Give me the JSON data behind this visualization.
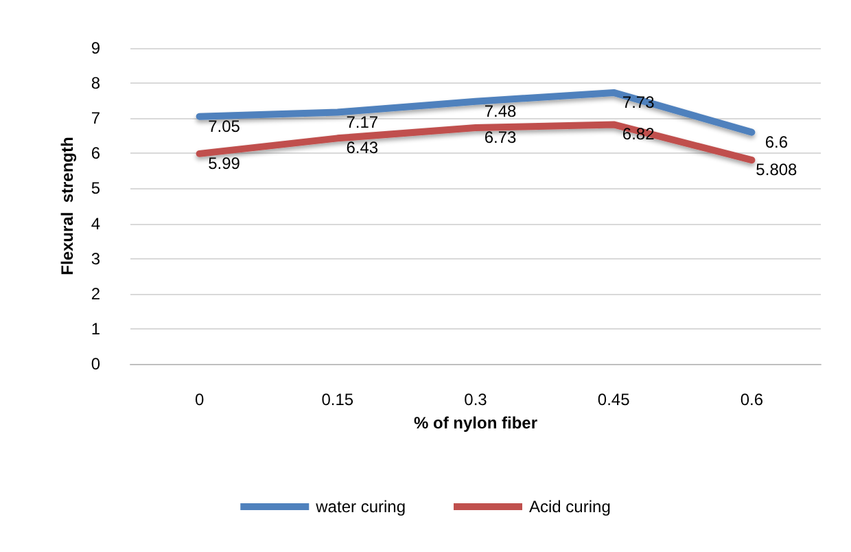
{
  "chart_data": {
    "type": "line",
    "xlabel": "% of nylon fiber",
    "ylabel": "Flexural  strength",
    "categories": [
      "0",
      "0.15",
      "0.3",
      "0.45",
      "0.6"
    ],
    "series": [
      {
        "name": "water curing",
        "color": "#4f81bd",
        "values": [
          7.05,
          7.17,
          7.48,
          7.73,
          6.6
        ]
      },
      {
        "name": "Acid curing",
        "color": "#c0504d",
        "values": [
          5.99,
          6.43,
          6.73,
          6.82,
          5.808
        ]
      }
    ],
    "ylim": [
      0,
      9
    ],
    "yticks": [
      0,
      1,
      2,
      3,
      4,
      5,
      6,
      7,
      8,
      9
    ],
    "grid": "y",
    "legend": "bottom",
    "marker": "none",
    "line_style": "solid",
    "data_labels": true
  }
}
